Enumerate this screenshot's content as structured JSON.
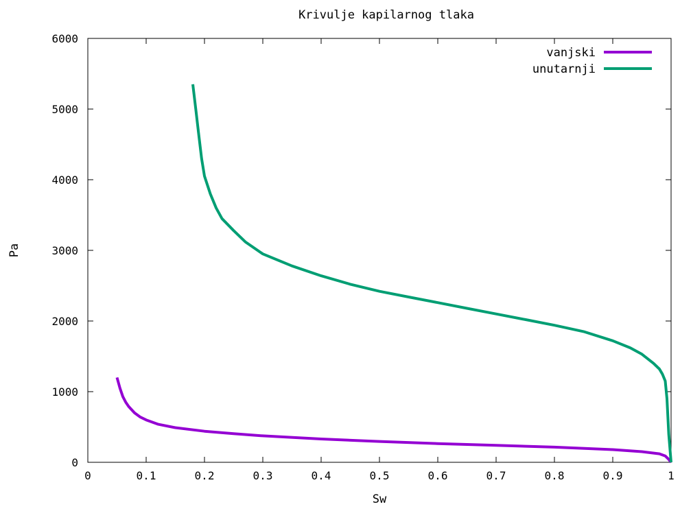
{
  "chart_data": {
    "type": "line",
    "title": "Krivulje kapilarnog tlaka",
    "xlabel": "Sw",
    "ylabel": "Pa",
    "xlim": [
      0,
      1
    ],
    "ylim": [
      0,
      6000
    ],
    "xticks": [
      0,
      0.1,
      0.2,
      0.3,
      0.4,
      0.5,
      0.6,
      0.7,
      0.8,
      0.9,
      1
    ],
    "xtick_labels": [
      "0",
      "0.1",
      "0.2",
      "0.3",
      "0.4",
      "0.5",
      "0.6",
      "0.7",
      "0.8",
      "0.9",
      "1"
    ],
    "yticks": [
      0,
      1000,
      2000,
      3000,
      4000,
      5000,
      6000
    ],
    "ytick_labels": [
      "0",
      "1000",
      "2000",
      "3000",
      "4000",
      "5000",
      "6000"
    ],
    "grid": false,
    "legend_position": "top-right",
    "series": [
      {
        "name": "vanjski",
        "color": "#9400d3",
        "x": [
          0.05,
          0.055,
          0.06,
          0.065,
          0.07,
          0.08,
          0.09,
          0.1,
          0.12,
          0.15,
          0.2,
          0.25,
          0.3,
          0.4,
          0.5,
          0.6,
          0.7,
          0.8,
          0.9,
          0.95,
          0.98,
          0.99,
          0.995,
          1.0
        ],
        "y": [
          1200,
          1050,
          930,
          850,
          790,
          700,
          640,
          600,
          540,
          490,
          440,
          405,
          375,
          330,
          295,
          265,
          240,
          215,
          180,
          150,
          120,
          90,
          50,
          0
        ]
      },
      {
        "name": "unutarnji",
        "color": "#009e73",
        "x": [
          0.18,
          0.185,
          0.19,
          0.195,
          0.2,
          0.21,
          0.22,
          0.23,
          0.25,
          0.27,
          0.3,
          0.35,
          0.4,
          0.45,
          0.5,
          0.55,
          0.6,
          0.65,
          0.7,
          0.75,
          0.8,
          0.85,
          0.9,
          0.93,
          0.95,
          0.97,
          0.98,
          0.985,
          0.99,
          0.993,
          0.996,
          1.0
        ],
        "y": [
          5350,
          5000,
          4650,
          4300,
          4050,
          3800,
          3600,
          3450,
          3280,
          3120,
          2950,
          2780,
          2640,
          2520,
          2420,
          2340,
          2260,
          2180,
          2100,
          2020,
          1940,
          1850,
          1720,
          1620,
          1530,
          1400,
          1320,
          1250,
          1150,
          900,
          400,
          0
        ]
      }
    ]
  }
}
